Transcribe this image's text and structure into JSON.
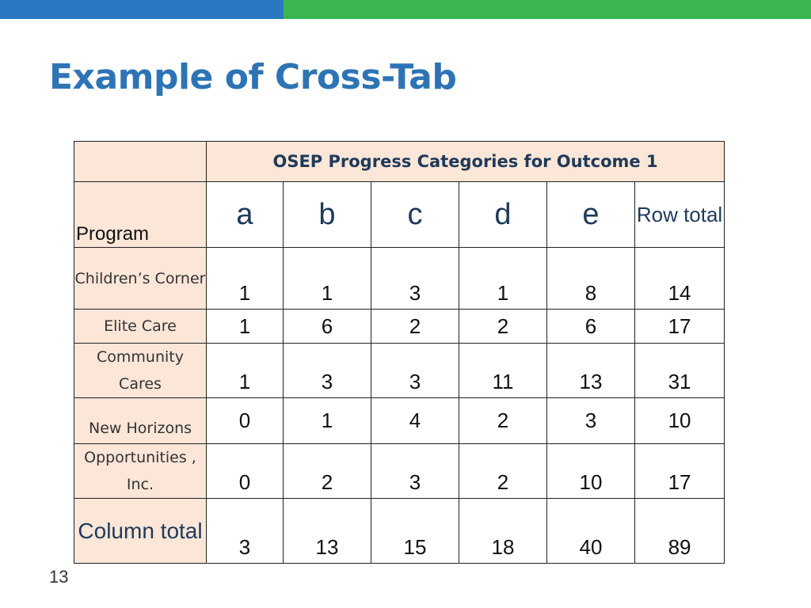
{
  "colors": {
    "blue_bar": "#2b78c2",
    "green_bar": "#3ab550",
    "title": "#2e74b5",
    "peach": "#fbe6d8"
  },
  "title": "Example of Cross-Tab",
  "table": {
    "group_header": "OSEP Progress Categories for Outcome 1",
    "program_header": "Program",
    "categories": [
      "a",
      "b",
      "c",
      "d",
      "e"
    ],
    "row_total_header": "Row total",
    "rows": [
      {
        "program": "Children’s Corner",
        "values": [
          "1",
          "1",
          "3",
          "1",
          "8"
        ],
        "total": "14"
      },
      {
        "program": "Elite Care",
        "values": [
          "1",
          "6",
          "2",
          "2",
          "6"
        ],
        "total": "17"
      },
      {
        "program": "Community Cares",
        "values": [
          "1",
          "3",
          "3",
          "11",
          "13"
        ],
        "total": "31"
      },
      {
        "program": "New Horizons",
        "values": [
          "0",
          "1",
          "4",
          "2",
          "3"
        ],
        "total": "10"
      },
      {
        "program": "Opportunities , Inc.",
        "values": [
          "0",
          "2",
          "3",
          "2",
          "10"
        ],
        "total": "17"
      }
    ],
    "column_total": {
      "label": "Column total",
      "values": [
        "3",
        "13",
        "15",
        "18",
        "40"
      ],
      "total": "89"
    }
  },
  "slide_number": "13"
}
